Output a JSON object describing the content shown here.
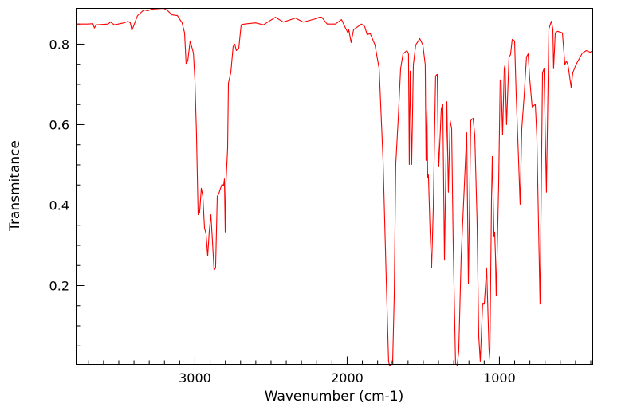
{
  "chart_data": {
    "type": "line",
    "title": "",
    "xlabel": "Wavenumber (cm-1)",
    "ylabel": "Transmitance",
    "xlim": [
      3780,
      387
    ],
    "ylim": [
      0.004,
      0.889
    ],
    "x_reversed": true,
    "x_ticks": [
      3000,
      2000,
      1000
    ],
    "x_tick_labels": [
      "3000",
      "2000",
      "1000"
    ],
    "x_minor_step": 100,
    "y_ticks": [
      0.2,
      0.4,
      0.6,
      0.8
    ],
    "y_tick_labels": [
      "0.2",
      "0.4",
      "0.6",
      "0.8"
    ],
    "y_minor_step": 0.05,
    "grid": false,
    "legend": "none",
    "series": [
      {
        "name": "spectrum",
        "color": "#ff0000",
        "points": [
          [
            3780,
            0.85
          ],
          [
            3702,
            0.85
          ],
          [
            3670,
            0.851
          ],
          [
            3660,
            0.84
          ],
          [
            3649,
            0.848
          ],
          [
            3571,
            0.85
          ],
          [
            3555,
            0.855
          ],
          [
            3529,
            0.848
          ],
          [
            3466,
            0.853
          ],
          [
            3440,
            0.857
          ],
          [
            3424,
            0.853
          ],
          [
            3414,
            0.834
          ],
          [
            3377,
            0.871
          ],
          [
            3335,
            0.885
          ],
          [
            3309,
            0.883
          ],
          [
            3283,
            0.887
          ],
          [
            3204,
            0.889
          ],
          [
            3178,
            0.883
          ],
          [
            3152,
            0.873
          ],
          [
            3115,
            0.871
          ],
          [
            3084,
            0.853
          ],
          [
            3068,
            0.828
          ],
          [
            3058,
            0.752
          ],
          [
            3047,
            0.758
          ],
          [
            3031,
            0.808
          ],
          [
            3010,
            0.778
          ],
          [
            3000,
            0.709
          ],
          [
            2990,
            0.58
          ],
          [
            2979,
            0.376
          ],
          [
            2969,
            0.382
          ],
          [
            2958,
            0.442
          ],
          [
            2948,
            0.422
          ],
          [
            2937,
            0.343
          ],
          [
            2927,
            0.329
          ],
          [
            2916,
            0.273
          ],
          [
            2906,
            0.333
          ],
          [
            2895,
            0.376
          ],
          [
            2885,
            0.313
          ],
          [
            2874,
            0.238
          ],
          [
            2864,
            0.244
          ],
          [
            2853,
            0.422
          ],
          [
            2843,
            0.428
          ],
          [
            2832,
            0.442
          ],
          [
            2822,
            0.452
          ],
          [
            2812,
            0.448
          ],
          [
            2806,
            0.465
          ],
          [
            2801,
            0.333
          ],
          [
            2796,
            0.455
          ],
          [
            2785,
            0.541
          ],
          [
            2780,
            0.703
          ],
          [
            2764,
            0.729
          ],
          [
            2749,
            0.794
          ],
          [
            2738,
            0.8
          ],
          [
            2728,
            0.784
          ],
          [
            2712,
            0.79
          ],
          [
            2696,
            0.848
          ],
          [
            2675,
            0.85
          ],
          [
            2602,
            0.853
          ],
          [
            2550,
            0.848
          ],
          [
            2471,
            0.867
          ],
          [
            2419,
            0.855
          ],
          [
            2340,
            0.865
          ],
          [
            2288,
            0.855
          ],
          [
            2209,
            0.863
          ],
          [
            2183,
            0.867
          ],
          [
            2167,
            0.867
          ],
          [
            2131,
            0.85
          ],
          [
            2078,
            0.85
          ],
          [
            2037,
            0.861
          ],
          [
            2016,
            0.844
          ],
          [
            1995,
            0.828
          ],
          [
            1989,
            0.836
          ],
          [
            1974,
            0.804
          ],
          [
            1958,
            0.836
          ],
          [
            1906,
            0.85
          ],
          [
            1885,
            0.844
          ],
          [
            1869,
            0.824
          ],
          [
            1848,
            0.826
          ],
          [
            1817,
            0.798
          ],
          [
            1790,
            0.739
          ],
          [
            1764,
            0.511
          ],
          [
            1743,
            0.214
          ],
          [
            1728,
            0.012
          ],
          [
            1722,
            0.002
          ],
          [
            1712,
            0.002
          ],
          [
            1701,
            0.016
          ],
          [
            1691,
            0.174
          ],
          [
            1681,
            0.501
          ],
          [
            1665,
            0.61
          ],
          [
            1649,
            0.739
          ],
          [
            1633,
            0.776
          ],
          [
            1607,
            0.784
          ],
          [
            1597,
            0.776
          ],
          [
            1592,
            0.501
          ],
          [
            1586,
            0.733
          ],
          [
            1576,
            0.501
          ],
          [
            1565,
            0.749
          ],
          [
            1550,
            0.798
          ],
          [
            1523,
            0.814
          ],
          [
            1503,
            0.798
          ],
          [
            1487,
            0.749
          ],
          [
            1482,
            0.511
          ],
          [
            1476,
            0.636
          ],
          [
            1471,
            0.467
          ],
          [
            1466,
            0.475
          ],
          [
            1455,
            0.333
          ],
          [
            1445,
            0.244
          ],
          [
            1434,
            0.392
          ],
          [
            1419,
            0.721
          ],
          [
            1408,
            0.725
          ],
          [
            1403,
            0.57
          ],
          [
            1398,
            0.495
          ],
          [
            1382,
            0.64
          ],
          [
            1372,
            0.65
          ],
          [
            1361,
            0.263
          ],
          [
            1345,
            0.657
          ],
          [
            1335,
            0.432
          ],
          [
            1324,
            0.61
          ],
          [
            1314,
            0.59
          ],
          [
            1304,
            0.313
          ],
          [
            1288,
            0.006
          ],
          [
            1277,
            0.002
          ],
          [
            1267,
            0.036
          ],
          [
            1251,
            0.273
          ],
          [
            1215,
            0.58
          ],
          [
            1204,
            0.204
          ],
          [
            1188,
            0.61
          ],
          [
            1173,
            0.616
          ],
          [
            1162,
            0.574
          ],
          [
            1147,
            0.362
          ],
          [
            1136,
            0.075
          ],
          [
            1126,
            0.012
          ],
          [
            1110,
            0.154
          ],
          [
            1099,
            0.154
          ],
          [
            1084,
            0.244
          ],
          [
            1068,
            0.04
          ],
          [
            1063,
            0.016
          ],
          [
            1052,
            0.412
          ],
          [
            1047,
            0.521
          ],
          [
            1036,
            0.323
          ],
          [
            1031,
            0.333
          ],
          [
            1026,
            0.273
          ],
          [
            1021,
            0.174
          ],
          [
            1005,
            0.452
          ],
          [
            995,
            0.709
          ],
          [
            989,
            0.713
          ],
          [
            979,
            0.574
          ],
          [
            968,
            0.739
          ],
          [
            963,
            0.749
          ],
          [
            953,
            0.6
          ],
          [
            937,
            0.768
          ],
          [
            927,
            0.774
          ],
          [
            916,
            0.812
          ],
          [
            900,
            0.808
          ],
          [
            890,
            0.679
          ],
          [
            874,
            0.511
          ],
          [
            864,
            0.402
          ],
          [
            853,
            0.59
          ],
          [
            838,
            0.669
          ],
          [
            822,
            0.768
          ],
          [
            811,
            0.776
          ],
          [
            801,
            0.715
          ],
          [
            785,
            0.644
          ],
          [
            764,
            0.65
          ],
          [
            754,
            0.57
          ],
          [
            733,
            0.154
          ],
          [
            717,
            0.729
          ],
          [
            707,
            0.739
          ],
          [
            691,
            0.432
          ],
          [
            675,
            0.838
          ],
          [
            659,
            0.857
          ],
          [
            649,
            0.838
          ],
          [
            644,
            0.739
          ],
          [
            633,
            0.828
          ],
          [
            618,
            0.832
          ],
          [
            586,
            0.828
          ],
          [
            570,
            0.749
          ],
          [
            560,
            0.758
          ],
          [
            550,
            0.749
          ],
          [
            529,
            0.693
          ],
          [
            518,
            0.729
          ],
          [
            497,
            0.749
          ],
          [
            455,
            0.778
          ],
          [
            429,
            0.784
          ],
          [
            403,
            0.78
          ],
          [
            387,
            0.784
          ]
        ]
      }
    ]
  }
}
